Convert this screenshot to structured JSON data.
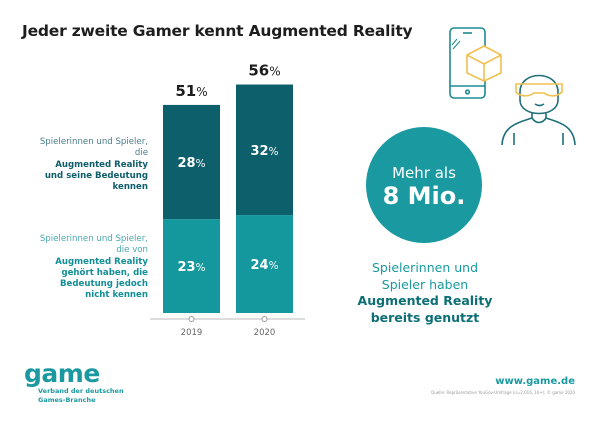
{
  "title": "Jeder zweite Gamer kennt Augmented Reality",
  "chart_data": {
    "type": "bar",
    "stacked": true,
    "categories": [
      "2019",
      "2020"
    ],
    "series": [
      {
        "name": "Spielerinnen und Spieler, die von Augmented Reality gehört haben, die Bedeutung jedoch nicht kennen",
        "values": [
          23,
          24
        ],
        "color": "#14979d"
      },
      {
        "name": "Spielerinnen und Spieler, die Augmented Reality und seine Bedeutung kennen",
        "values": [
          28,
          32
        ],
        "color": "#0d5f6b"
      }
    ],
    "totals": [
      51,
      56
    ],
    "unit": "%",
    "grid": false
  },
  "legend": {
    "top_plain": "Spielerinnen und Spieler, die",
    "top_bold": "Augmented Reality und seine Bedeutung kennen",
    "bottom_plain": "Spielerinnen und Spieler, die von",
    "bottom_bold": "Augmented Reality gehört haben, die Bedeutung jedoch nicht kennen"
  },
  "highlight": {
    "line1": "Mehr als",
    "line2": "8 Mio.",
    "caption_plain": "Spielerinnen und Spieler haben",
    "caption_bold": "Augmented Reality bereits genutzt"
  },
  "footer": {
    "logo": "game",
    "logo_sub1": "Verband der deutschen",
    "logo_sub2": "Games-Branche",
    "url": "www.game.de",
    "source": "Quelle: Repräsentative YouGov-Umfrage (n=2.016, 16+); © game 2020"
  },
  "colors": {
    "accent": "#1a9aa0",
    "dark": "#0d5f6b",
    "icon_yellow": "#f0c050"
  }
}
